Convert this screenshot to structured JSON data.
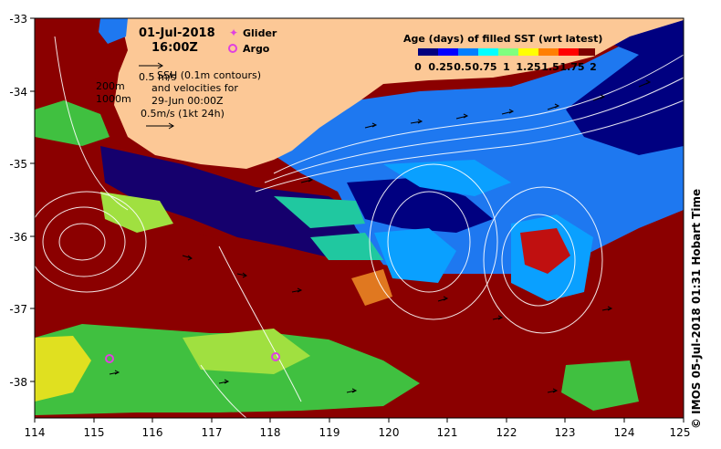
{
  "map": {
    "date_line": "01-Jul-2018",
    "time_line": "16:00Z",
    "credit": "© IMOS 05-Jul-2018 01:31 Hobart Time"
  },
  "legend": {
    "glider_label": "Glider",
    "argo_label": "Argo",
    "glider_color": "#e040e0",
    "argo_color": "#e040e0"
  },
  "colorbar": {
    "title": "Age (days) of filled SST (wrt latest)",
    "ticks": [
      "0",
      "0.25",
      "0.5",
      "0.75",
      "1",
      "1.25",
      "1.5",
      "1.75",
      "2"
    ],
    "colors": [
      "#00007f",
      "#0000ff",
      "#007fff",
      "#00ffff",
      "#7fff7f",
      "#ffff00",
      "#ff7f00",
      "#ff0000",
      "#7f0000"
    ]
  },
  "notes": {
    "contours": "SSH (0.1m contours)",
    "vel_label": "0.5 m/s",
    "and_velocities": "and velocities for",
    "vel_date": "29-Jun 00:00Z",
    "scale_note": "0.5m/s (1kt 24h)",
    "depth_200": "200m",
    "depth_1000": "1000m"
  },
  "axes": {
    "x_ticks": [
      "114",
      "115",
      "116",
      "117",
      "118",
      "119",
      "120",
      "121",
      "122",
      "123",
      "124",
      "125"
    ],
    "y_ticks": [
      "-33",
      "-34",
      "-35",
      "-36",
      "-37",
      "-38"
    ]
  },
  "colors": {
    "land": "#fcc896",
    "dark_red": "#8b0000",
    "navy": "#000080",
    "ocean_blue": "#1e78f0",
    "light_blue": "#0aa0ff",
    "teal": "#20c8a0",
    "green": "#40c040",
    "yellow_green": "#a0e040",
    "orange": "#e07820"
  }
}
